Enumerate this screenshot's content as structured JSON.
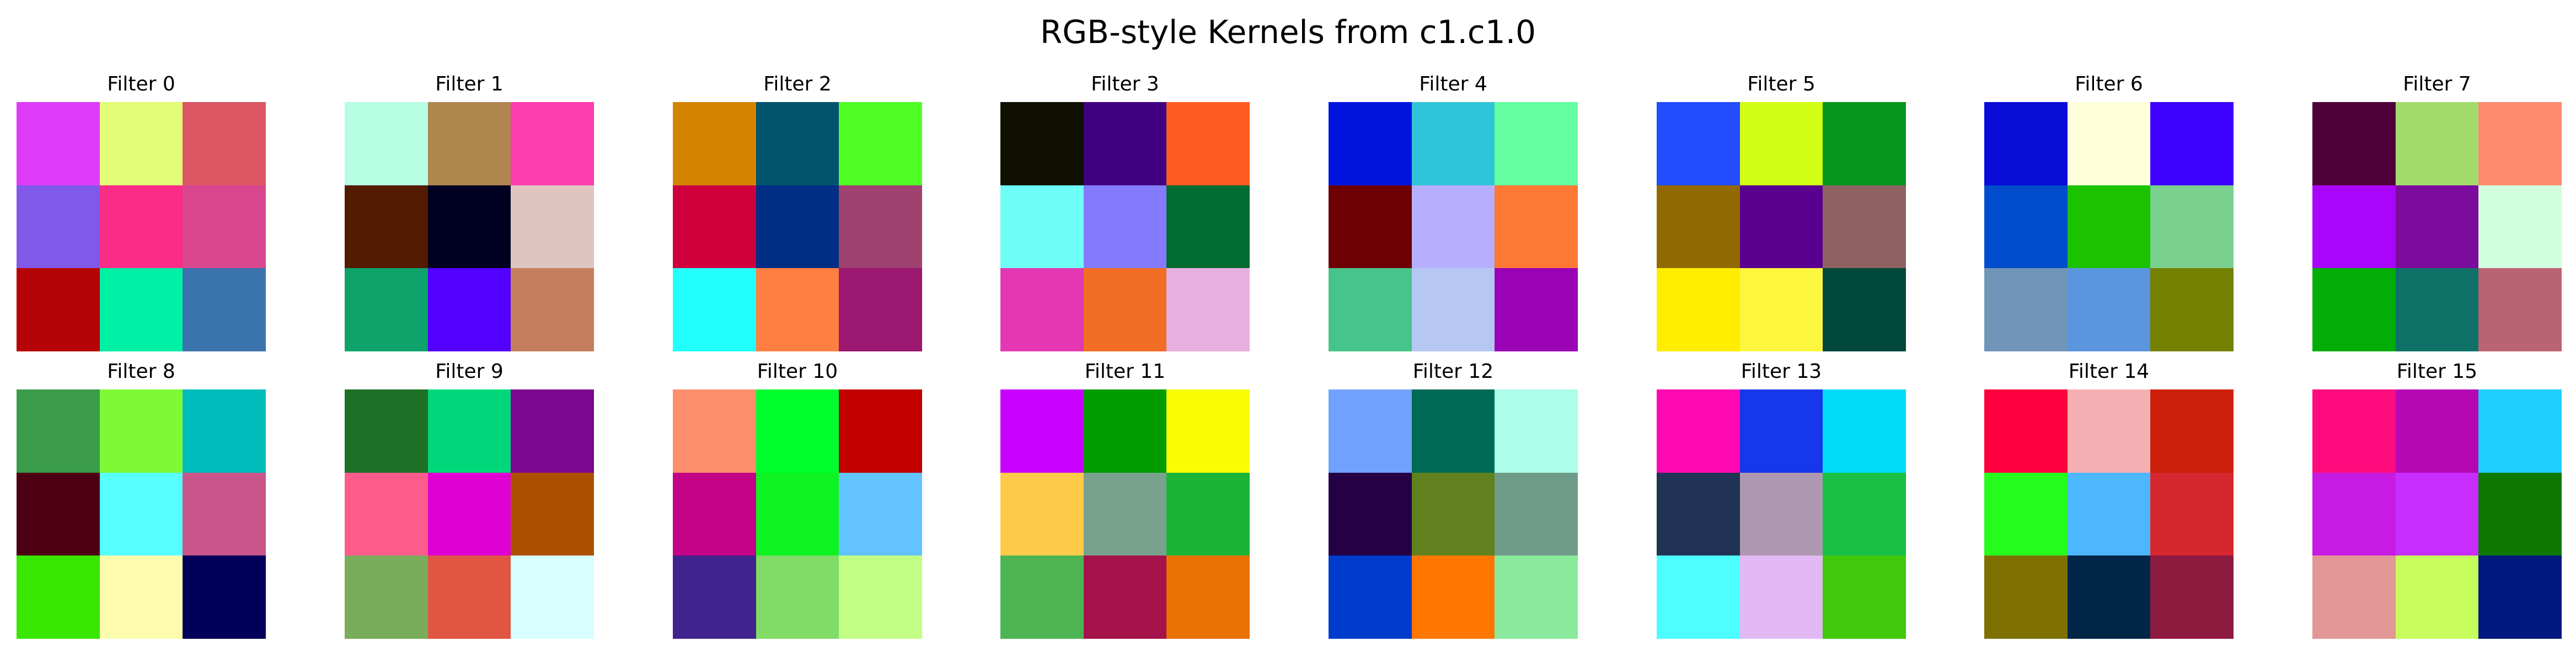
{
  "title": "RGB-style Kernels from c1.c1.0",
  "filters": [
    {
      "label": "Filter 0",
      "colors": [
        "#de3bf9",
        "#e3fc78",
        "#db5763",
        "#8059e8",
        "#fb2c87",
        "#d8478f",
        "#b60306",
        "#00f0a6",
        "#3c74ad"
      ]
    },
    {
      "label": "Filter 1",
      "colors": [
        "#b6fde4",
        "#b0864f",
        "#fd3dae",
        "#531b00",
        "#000021",
        "#dec5c0",
        "#0da36b",
        "#5200ff",
        "#c57e5d"
      ]
    },
    {
      "label": "Filter 2",
      "colors": [
        "#d48400",
        "#02546e",
        "#50fe26",
        "#d0003d",
        "#002f85",
        "#a04270",
        "#22fffc",
        "#ff7f43",
        "#9d1870"
      ]
    },
    {
      "label": "Filter 3",
      "colors": [
        "#0f1000",
        "#400180",
        "#fe5c21",
        "#6dfef6",
        "#837bfc",
        "#026c31",
        "#e338b2",
        "#f16e24",
        "#e9afe0"
      ]
    },
    {
      "label": "Filter 4",
      "colors": [
        "#0016df",
        "#2fc5d8",
        "#64ffa1",
        "#6c0005",
        "#b7aefe",
        "#fe7835",
        "#47c48a",
        "#b6c7f2",
        "#9a02b5"
      ]
    },
    {
      "label": "Filter 5",
      "colors": [
        "#234cfe",
        "#d2fe15",
        "#06961e",
        "#926900",
        "#5a0090",
        "#8e6260",
        "#ffed00",
        "#fcf73e",
        "#00473c"
      ]
    },
    {
      "label": "Filter 6",
      "colors": [
        "#0a0cd8",
        "#ffffdb",
        "#3d00fe",
        "#004ccc",
        "#1bc200",
        "#7ad08f",
        "#7095b8",
        "#5b95df",
        "#758100"
      ]
    },
    {
      "label": "Filter 7",
      "colors": [
        "#4e0139",
        "#a3dc6b",
        "#fe8a70",
        "#aa05fb",
        "#7c0b9e",
        "#d1fedd",
        "#02ae05",
        "#0e7268",
        "#ba6372"
      ]
    },
    {
      "label": "Filter 8",
      "colors": [
        "#3a9b49",
        "#7ff836",
        "#00bdbb",
        "#4d0013",
        "#57ffff",
        "#c9558a",
        "#37e700",
        "#fdfcae",
        "#00005a"
      ]
    },
    {
      "label": "Filter 9",
      "colors": [
        "#1d7025",
        "#00d77a",
        "#7c0790",
        "#fe5b8d",
        "#df00d3",
        "#ac5000",
        "#79ac5b",
        "#e05642",
        "#d8fefe"
      ]
    },
    {
      "label": "Filter 10",
      "colors": [
        "#fe8e6e",
        "#00fe2f",
        "#c20000",
        "#c30285",
        "#0ef423",
        "#63c3fe",
        "#41238d",
        "#80dc67",
        "#c3fe84"
      ]
    },
    {
      "label": "Filter 11",
      "colors": [
        "#c800fe",
        "#019c00",
        "#f8fd05",
        "#fdcb48",
        "#78a28d",
        "#1cb434",
        "#4db454",
        "#a6124a",
        "#e97104"
      ]
    },
    {
      "label": "Filter 12",
      "colors": [
        "#70a1fd",
        "#006a57",
        "#acfee9",
        "#250044",
        "#61801e",
        "#6f9b89",
        "#003ccc",
        "#ff7600",
        "#8aeb9d"
      ]
    },
    {
      "label": "Filter 13",
      "colors": [
        "#fe09b1",
        "#1637ea",
        "#00dcf8",
        "#213354",
        "#ae97b0",
        "#1ac046",
        "#4dfefe",
        "#e2b9f4",
        "#41c80a"
      ]
    },
    {
      "label": "Filter 14",
      "colors": [
        "#fe003d",
        "#f4afb2",
        "#cd200b",
        "#25fd1e",
        "#4db7fd",
        "#d6272f",
        "#7e7000",
        "#002648",
        "#8d1a3f"
      ]
    },
    {
      "label": "Filter 15",
      "colors": [
        "#fe0b7e",
        "#b507b3",
        "#20cffe",
        "#c71ae2",
        "#c72efe",
        "#0d7800",
        "#e29696",
        "#c6fc5b",
        "#00187f"
      ]
    }
  ]
}
